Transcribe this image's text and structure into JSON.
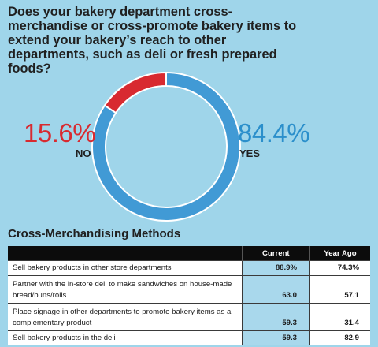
{
  "title": "Does your bakery department cross-merchandise or cross-promote bakery items to extend your bakery’s reach to other departments, such as deli or fresh prepared foods?",
  "colors": {
    "background": "#9fd5ea",
    "yes": "#419ad5",
    "no": "#d82a30"
  },
  "chart_data": [
    {
      "type": "pie",
      "title": "Does your bakery department cross-merchandise or cross-promote bakery items to extend your bakery’s reach to other departments, such as deli or fresh prepared foods?",
      "slices": [
        {
          "label": "NO",
          "value": 15.6,
          "display": "15.6%",
          "color": "#d82a30"
        },
        {
          "label": "YES",
          "value": 84.4,
          "display": "84.4%",
          "color": "#419ad5"
        }
      ]
    },
    {
      "type": "table",
      "title": "Cross-Merchandising Methods",
      "columns": [
        "",
        "Current",
        "Year Ago"
      ],
      "rows": [
        {
          "method": "Sell bakery products in other store departments",
          "current": "88.9%",
          "year_ago": "74.3%"
        },
        {
          "method": "Partner with the in-store deli to make sandwiches on house-made bread/buns/rolls",
          "current": "63.0",
          "year_ago": "57.1"
        },
        {
          "method": "Place signage in other departments to promote bakery items as a complementary product",
          "current": "59.3",
          "year_ago": "31.4"
        },
        {
          "method": "Sell bakery products in the deli",
          "current": "59.3",
          "year_ago": "82.9"
        }
      ]
    }
  ]
}
